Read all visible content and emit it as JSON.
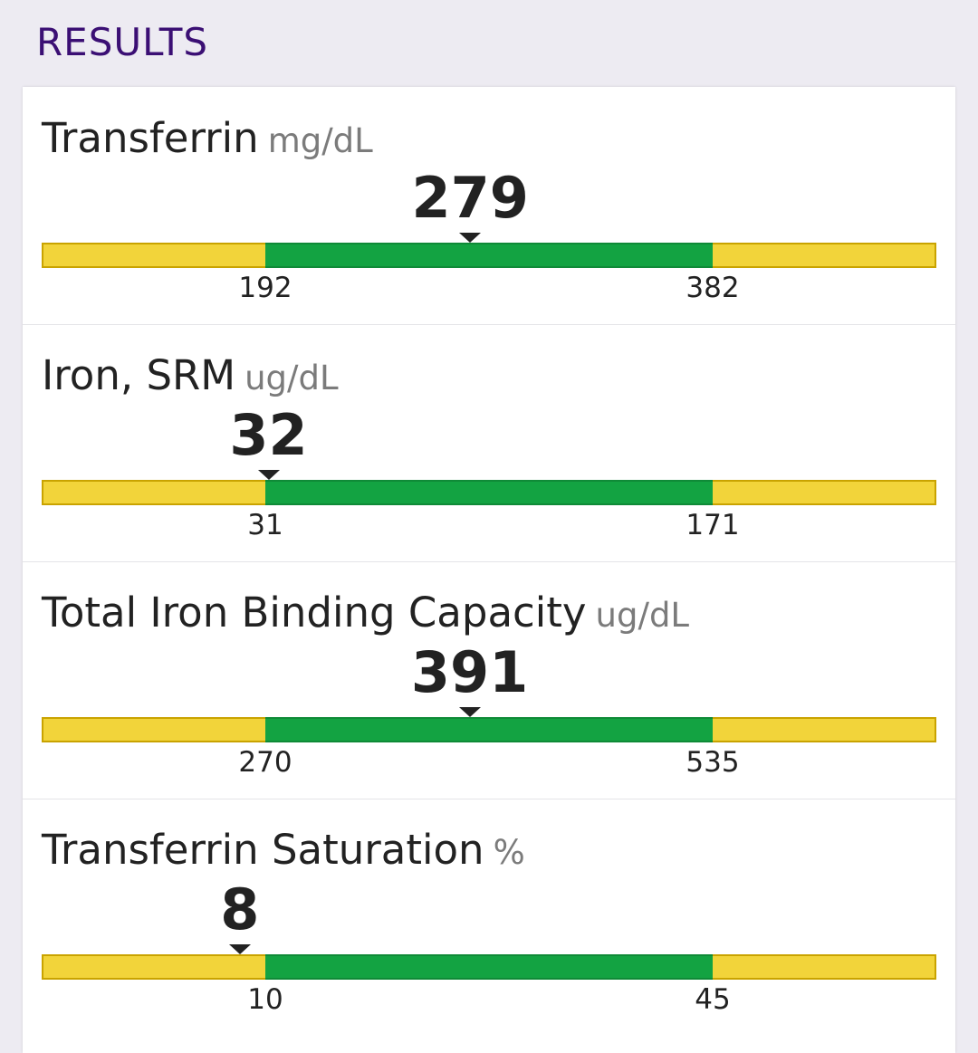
{
  "header": {
    "title": "RESULTS"
  },
  "colors": {
    "header_text": "#3b0f74",
    "out_of_range": "#f2d43a",
    "in_range": "#13a342",
    "background": "#edebf2"
  },
  "results": [
    {
      "name": "Transferrin",
      "unit": "mg/dL",
      "value": "279",
      "range_low": "192",
      "range_high": "382"
    },
    {
      "name": "Iron, SRM",
      "unit": "ug/dL",
      "value": "32",
      "range_low": "31",
      "range_high": "171"
    },
    {
      "name": "Total Iron Binding Capacity",
      "unit": "ug/dL",
      "value": "391",
      "range_low": "270",
      "range_high": "535"
    },
    {
      "name": "Transferrin Saturation",
      "unit": "%",
      "value": "8",
      "range_low": "10",
      "range_high": "45"
    }
  ]
}
